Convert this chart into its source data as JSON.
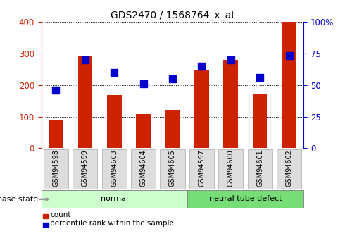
{
  "title": "GDS2470 / 1568764_x_at",
  "categories": [
    "GSM94598",
    "GSM94599",
    "GSM94603",
    "GSM94604",
    "GSM94605",
    "GSM94597",
    "GSM94600",
    "GSM94601",
    "GSM94602"
  ],
  "bar_values": [
    90,
    290,
    168,
    108,
    122,
    247,
    280,
    170,
    400
  ],
  "dot_values": [
    46,
    70,
    60,
    51,
    55,
    65,
    70,
    56,
    73
  ],
  "bar_color": "#cc2200",
  "dot_color": "#0000cc",
  "left_ylim": [
    0,
    400
  ],
  "right_ylim": [
    0,
    100
  ],
  "left_yticks": [
    0,
    100,
    200,
    300,
    400
  ],
  "right_yticks": [
    0,
    25,
    50,
    75,
    100
  ],
  "right_yticklabels": [
    "0",
    "25",
    "50",
    "75",
    "100%"
  ],
  "left_ycolor": "#cc2200",
  "right_ycolor": "#0000cc",
  "group_labels": [
    "normal",
    "neural tube defect"
  ],
  "group_ranges": [
    [
      0,
      4
    ],
    [
      5,
      8
    ]
  ],
  "group_colors_light": "#ccffcc",
  "group_colors_dark": "#77dd77",
  "disease_state_label": "disease state",
  "legend_count_label": "count",
  "legend_pct_label": "percentile rank within the sample",
  "tick_label_bg": "#dddddd",
  "tick_label_edgecolor": "#aaaaaa",
  "bar_width": 0.5,
  "dot_size": 50,
  "title_fontsize": 10,
  "axis_fontsize": 8.5,
  "label_fontsize": 8,
  "group_label_fontsize": 8
}
